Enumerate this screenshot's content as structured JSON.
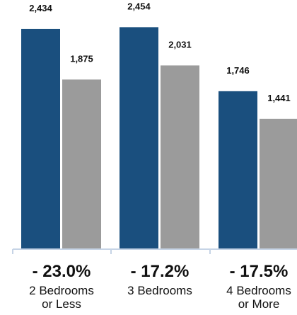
{
  "chart_data": {
    "type": "bar",
    "categories": [
      [
        "2 Bedrooms",
        "or Less"
      ],
      [
        "3 Bedrooms"
      ],
      [
        "4 Bedrooms",
        "or More"
      ]
    ],
    "series": [
      {
        "values": [
          2434,
          2454,
          1746
        ],
        "labels": [
          "2,434",
          "2,454",
          "1,746"
        ],
        "color": "#1a4f7e"
      },
      {
        "values": [
          1875,
          2031,
          1441
        ],
        "labels": [
          "1,875",
          "2,031",
          "1,441"
        ],
        "color": "#9b9b9b"
      }
    ],
    "change_labels": [
      "- 23.0%",
      "- 17.2%",
      "- 17.5%"
    ],
    "ylim": [
      0,
      2500
    ],
    "axis_color": "#c6d4e6",
    "title": "",
    "xlabel": "",
    "ylabel": ""
  }
}
